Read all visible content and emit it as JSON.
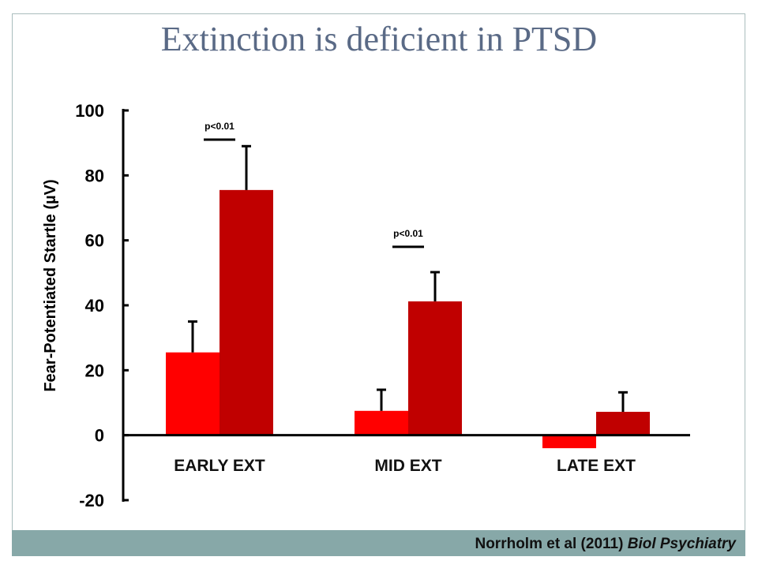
{
  "slide": {
    "title": "Extinction is deficient in PTSD",
    "citation_authors": "Norrholm et al (2011)",
    "citation_journal": "Biol Psychiatry"
  },
  "colors": {
    "series_a": "#ff0000",
    "series_b": "#c00000",
    "title": "#5a6a86",
    "footer_band": "#87a8a8",
    "slide_border": "#a9bdbd"
  },
  "chart_data": {
    "type": "bar",
    "categories": [
      "EARLY EXT",
      "MID EXT",
      "LATE EXT"
    ],
    "series": [
      {
        "values": [
          25.5,
          7.5,
          -4
        ],
        "errors": [
          9.5,
          6.5,
          0
        ],
        "color": "#ff0000"
      },
      {
        "values": [
          75.5,
          41.2,
          7.2
        ],
        "errors": [
          13.5,
          9.0,
          6.0
        ],
        "color": "#c00000"
      }
    ],
    "ylabel": "Fear-Potentiated Startle  (µV)",
    "ylim": [
      -20,
      100
    ],
    "yticks": [
      100,
      80,
      60,
      40,
      20,
      0,
      -20
    ],
    "legend": "none",
    "grid": false,
    "annotations": [
      {
        "text": "p<0.01",
        "category": "EARLY EXT",
        "value": 91
      },
      {
        "text": "p<0.01",
        "category": "MID EXT",
        "value": 58
      }
    ]
  }
}
